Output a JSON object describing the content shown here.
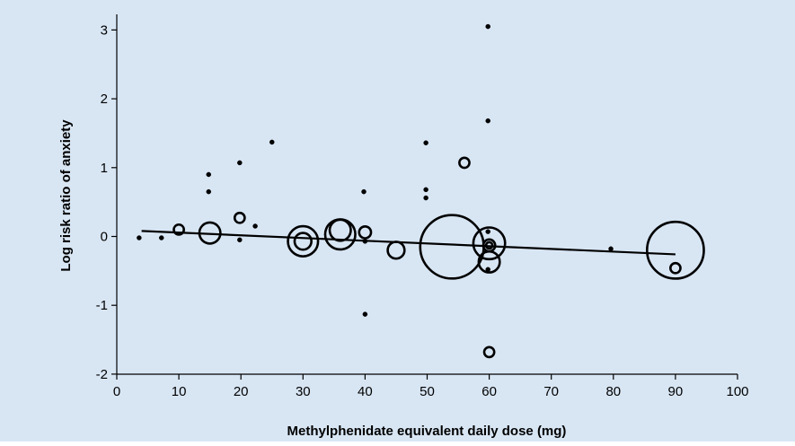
{
  "colors": {
    "background": "#d8e6f4",
    "ink": "#000000"
  },
  "chart_data": {
    "type": "scatter",
    "title": "",
    "xlabel": "Methylphenidate equivalent daily dose (mg)",
    "ylabel": "Log risk ratio of anxiety",
    "xlim": [
      0,
      100
    ],
    "ylim": [
      -2,
      3.2
    ],
    "x_ticks": [
      0,
      10,
      20,
      30,
      40,
      50,
      60,
      70,
      80,
      90,
      100
    ],
    "y_ticks": [
      -2,
      -1,
      0,
      1,
      2,
      3
    ],
    "grid": false,
    "legend": "none",
    "marker": "open-circle, size proportional to study weight",
    "points": [
      {
        "x": 3.6,
        "y": -0.02,
        "weight": 0.3
      },
      {
        "x": 7.2,
        "y": -0.02,
        "weight": 0.3
      },
      {
        "x": 10,
        "y": 0.1,
        "weight": 5
      },
      {
        "x": 14.8,
        "y": 0.9,
        "weight": 0.5
      },
      {
        "x": 14.8,
        "y": 0.65,
        "weight": 0.3
      },
      {
        "x": 15,
        "y": 0.05,
        "weight": 22
      },
      {
        "x": 19.8,
        "y": 0.27,
        "weight": 5
      },
      {
        "x": 19.8,
        "y": 1.07,
        "weight": 0.3
      },
      {
        "x": 19.8,
        "y": -0.05,
        "weight": 0.3
      },
      {
        "x": 22.3,
        "y": 0.15,
        "weight": 0.3
      },
      {
        "x": 25,
        "y": 1.37,
        "weight": 0.3
      },
      {
        "x": 30,
        "y": -0.07,
        "weight": 45
      },
      {
        "x": 30,
        "y": -0.07,
        "weight": 14
      },
      {
        "x": 36,
        "y": 0.03,
        "weight": 45
      },
      {
        "x": 36,
        "y": 0.09,
        "weight": 22
      },
      {
        "x": 39.8,
        "y": 0.65,
        "weight": 0.5
      },
      {
        "x": 40,
        "y": 0.06,
        "weight": 7
      },
      {
        "x": 40,
        "y": -0.07,
        "weight": 0.3
      },
      {
        "x": 40,
        "y": -1.13,
        "weight": 0.3
      },
      {
        "x": 45,
        "y": -0.2,
        "weight": 14
      },
      {
        "x": 49.8,
        "y": 1.36,
        "weight": 0.3
      },
      {
        "x": 49.8,
        "y": 0.68,
        "weight": 0.3
      },
      {
        "x": 49.8,
        "y": 0.56,
        "weight": 0.3
      },
      {
        "x": 54,
        "y": -0.15,
        "weight": 200
      },
      {
        "x": 56,
        "y": 1.07,
        "weight": 5
      },
      {
        "x": 59.8,
        "y": 3.05,
        "weight": 0.3
      },
      {
        "x": 59.8,
        "y": 1.68,
        "weight": 0.3
      },
      {
        "x": 59.8,
        "y": 0.07,
        "weight": 0.3
      },
      {
        "x": 60,
        "y": -0.1,
        "weight": 50
      },
      {
        "x": 60,
        "y": -0.13,
        "weight": 7
      },
      {
        "x": 60,
        "y": -0.13,
        "weight": 2
      },
      {
        "x": 60,
        "y": -0.37,
        "weight": 22
      },
      {
        "x": 59.8,
        "y": -0.48,
        "weight": 0.3
      },
      {
        "x": 60,
        "y": -1.68,
        "weight": 5
      },
      {
        "x": 79.6,
        "y": -0.18,
        "weight": 0.3
      },
      {
        "x": 90,
        "y": -0.2,
        "weight": 160
      },
      {
        "x": 90,
        "y": -0.46,
        "weight": 5
      }
    ],
    "fit_line": {
      "x": [
        4,
        90
      ],
      "y": [
        0.08,
        -0.26
      ]
    }
  }
}
